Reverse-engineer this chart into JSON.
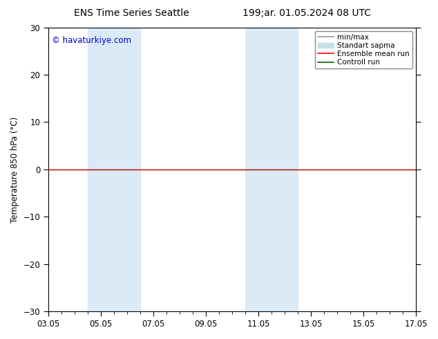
{
  "title_left": "ENS Time Series Seattle",
  "title_right": "199;ar. 01.05.2024 08 UTC",
  "ylabel": "Temperature 850 hPa (°C)",
  "watermark": "© havaturkiye.com",
  "ylim": [
    -30,
    30
  ],
  "yticks": [
    -30,
    -20,
    -10,
    0,
    10,
    20,
    30
  ],
  "xtick_labels": [
    "03.05",
    "05.05",
    "07.05",
    "09.05",
    "11.05",
    "13.05",
    "15.05",
    "17.05"
  ],
  "xtick_positions": [
    0,
    2,
    4,
    6,
    8,
    10,
    12,
    14
  ],
  "shaded_bands": [
    {
      "x_start": 1.5,
      "x_end": 3.5
    },
    {
      "x_start": 7.5,
      "x_end": 9.5
    }
  ],
  "control_run_y": 0.0,
  "ensemble_mean_y": 0.0,
  "bg_color": "#ffffff",
  "shade_color": "#daeaf7",
  "minmax_color": "#999999",
  "stddev_color": "#c8dcea",
  "ensemble_color": "#ff0000",
  "control_color": "#006400",
  "watermark_color": "#0000cc",
  "legend_labels": [
    "min/max",
    "Standart sapma",
    "Ensemble mean run",
    "Controll run"
  ],
  "title_fontsize": 10,
  "axis_fontsize": 8.5,
  "tick_fontsize": 8.5
}
